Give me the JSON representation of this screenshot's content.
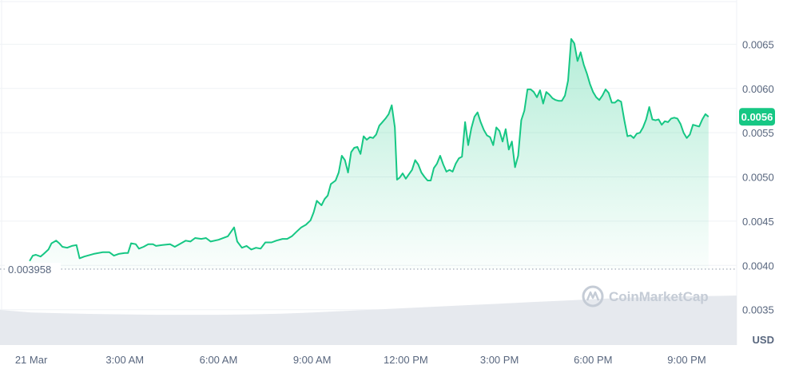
{
  "chart_data": {
    "type": "area",
    "title": "",
    "xlabel": "",
    "ylabel": "",
    "unit": "USD",
    "ylim": [
      0.0031,
      0.007
    ],
    "y_ticks": [
      "0.0035",
      "0.0040",
      "0.0045",
      "0.0050",
      "0.0055",
      "0.0060",
      "0.0065"
    ],
    "x_ticks": [
      "21 Mar",
      "3:00 AM",
      "6:00 AM",
      "9:00 AM",
      "12:00 PM",
      "3:00 PM",
      "6:00 PM",
      "9:00 PM"
    ],
    "x_tick_hours": [
      0,
      3,
      6,
      9,
      12,
      15,
      18,
      21
    ],
    "x_range_hours": [
      -1.0,
      22.6
    ],
    "reference": {
      "value": 0.003958,
      "label": "0.003958"
    },
    "current": {
      "value": 0.0056,
      "label": "0.0056"
    },
    "grid": true,
    "colors": {
      "line": "#16c784",
      "fill": "#16c784",
      "volume": "#e6e9ee",
      "grid": "#eff2f5"
    },
    "watermark": "CoinMarketCap",
    "series": [
      {
        "points": [
          [
            -0.05,
            0.00405
          ],
          [
            0.05,
            0.00411
          ],
          [
            0.15,
            0.00412
          ],
          [
            0.3,
            0.0041
          ],
          [
            0.4,
            0.00413
          ],
          [
            0.55,
            0.00418
          ],
          [
            0.65,
            0.00425
          ],
          [
            0.8,
            0.00428
          ],
          [
            0.9,
            0.00425
          ],
          [
            1.0,
            0.00421
          ],
          [
            1.15,
            0.0042
          ],
          [
            1.3,
            0.00422
          ],
          [
            1.45,
            0.00423
          ],
          [
            1.55,
            0.00408
          ],
          [
            1.7,
            0.0041
          ],
          [
            2.0,
            0.00413
          ],
          [
            2.3,
            0.00415
          ],
          [
            2.5,
            0.00415
          ],
          [
            2.65,
            0.00411
          ],
          [
            2.8,
            0.00413
          ],
          [
            3.0,
            0.00414
          ],
          [
            3.1,
            0.00414
          ],
          [
            3.2,
            0.00425
          ],
          [
            3.35,
            0.00424
          ],
          [
            3.45,
            0.00419
          ],
          [
            3.6,
            0.00421
          ],
          [
            3.75,
            0.00424
          ],
          [
            3.9,
            0.00424
          ],
          [
            4.0,
            0.00422
          ],
          [
            4.2,
            0.00423
          ],
          [
            4.45,
            0.00424
          ],
          [
            4.6,
            0.00421
          ],
          [
            4.75,
            0.00424
          ],
          [
            4.95,
            0.00428
          ],
          [
            5.1,
            0.00427
          ],
          [
            5.25,
            0.00431
          ],
          [
            5.45,
            0.0043
          ],
          [
            5.6,
            0.00431
          ],
          [
            5.75,
            0.00427
          ],
          [
            6.0,
            0.00429
          ],
          [
            6.3,
            0.00433
          ],
          [
            6.5,
            0.00443
          ],
          [
            6.6,
            0.00427
          ],
          [
            6.75,
            0.0042
          ],
          [
            6.9,
            0.00422
          ],
          [
            7.05,
            0.00418
          ],
          [
            7.2,
            0.0042
          ],
          [
            7.35,
            0.00419
          ],
          [
            7.5,
            0.00426
          ],
          [
            7.7,
            0.00426
          ],
          [
            7.85,
            0.00428
          ],
          [
            8.05,
            0.0043
          ],
          [
            8.2,
            0.0043
          ],
          [
            8.35,
            0.00433
          ],
          [
            8.5,
            0.00438
          ],
          [
            8.65,
            0.00443
          ],
          [
            8.8,
            0.00446
          ],
          [
            8.95,
            0.00451
          ],
          [
            9.05,
            0.0046
          ],
          [
            9.15,
            0.00473
          ],
          [
            9.3,
            0.00468
          ],
          [
            9.4,
            0.00475
          ],
          [
            9.5,
            0.00479
          ],
          [
            9.6,
            0.00492
          ],
          [
            9.75,
            0.00496
          ],
          [
            9.85,
            0.00505
          ],
          [
            9.95,
            0.00524
          ],
          [
            10.05,
            0.00519
          ],
          [
            10.15,
            0.00505
          ],
          [
            10.25,
            0.00528
          ],
          [
            10.35,
            0.00533
          ],
          [
            10.45,
            0.00534
          ],
          [
            10.55,
            0.00526
          ],
          [
            10.65,
            0.00546
          ],
          [
            10.75,
            0.00542
          ],
          [
            10.85,
            0.00545
          ],
          [
            10.95,
            0.00544
          ],
          [
            11.05,
            0.00548
          ],
          [
            11.15,
            0.00558
          ],
          [
            11.25,
            0.00562
          ],
          [
            11.35,
            0.00566
          ],
          [
            11.45,
            0.00571
          ],
          [
            11.55,
            0.00581
          ],
          [
            11.65,
            0.00556
          ],
          [
            11.72,
            0.00497
          ],
          [
            11.8,
            0.00499
          ],
          [
            11.9,
            0.00504
          ],
          [
            12.0,
            0.00498
          ],
          [
            12.1,
            0.00503
          ],
          [
            12.2,
            0.00508
          ],
          [
            12.3,
            0.00519
          ],
          [
            12.4,
            0.00514
          ],
          [
            12.5,
            0.00505
          ],
          [
            12.6,
            0.005
          ],
          [
            12.7,
            0.00496
          ],
          [
            12.8,
            0.00496
          ],
          [
            12.9,
            0.0051
          ],
          [
            13.0,
            0.00515
          ],
          [
            13.1,
            0.00524
          ],
          [
            13.2,
            0.00514
          ],
          [
            13.3,
            0.00506
          ],
          [
            13.4,
            0.00508
          ],
          [
            13.5,
            0.00506
          ],
          [
            13.6,
            0.00515
          ],
          [
            13.7,
            0.00521
          ],
          [
            13.8,
            0.00523
          ],
          [
            13.9,
            0.00562
          ],
          [
            14.0,
            0.00536
          ],
          [
            14.1,
            0.00555
          ],
          [
            14.2,
            0.00568
          ],
          [
            14.3,
            0.00573
          ],
          [
            14.4,
            0.00562
          ],
          [
            14.5,
            0.00553
          ],
          [
            14.6,
            0.00547
          ],
          [
            14.7,
            0.00545
          ],
          [
            14.8,
            0.00536
          ],
          [
            14.9,
            0.00556
          ],
          [
            15.0,
            0.00552
          ],
          [
            15.1,
            0.0054
          ],
          [
            15.2,
            0.00554
          ],
          [
            15.3,
            0.00531
          ],
          [
            15.4,
            0.0054
          ],
          [
            15.5,
            0.00511
          ],
          [
            15.6,
            0.00524
          ],
          [
            15.7,
            0.00564
          ],
          [
            15.8,
            0.00575
          ],
          [
            15.9,
            0.00599
          ],
          [
            16.0,
            0.00599
          ],
          [
            16.1,
            0.00596
          ],
          [
            16.2,
            0.0059
          ],
          [
            16.3,
            0.00598
          ],
          [
            16.4,
            0.00583
          ],
          [
            16.5,
            0.00596
          ],
          [
            16.6,
            0.00593
          ],
          [
            16.7,
            0.00589
          ],
          [
            16.8,
            0.00587
          ],
          [
            16.9,
            0.00586
          ],
          [
            17.0,
            0.00586
          ],
          [
            17.1,
            0.00592
          ],
          [
            17.2,
            0.00609
          ],
          [
            17.3,
            0.00656
          ],
          [
            17.4,
            0.00651
          ],
          [
            17.5,
            0.00631
          ],
          [
            17.6,
            0.00641
          ],
          [
            17.7,
            0.00627
          ],
          [
            17.8,
            0.00617
          ],
          [
            17.9,
            0.00605
          ],
          [
            18.0,
            0.00596
          ],
          [
            18.1,
            0.0059
          ],
          [
            18.2,
            0.00587
          ],
          [
            18.3,
            0.00592
          ],
          [
            18.4,
            0.00599
          ],
          [
            18.5,
            0.00595
          ],
          [
            18.6,
            0.00584
          ],
          [
            18.7,
            0.00584
          ],
          [
            18.8,
            0.00587
          ],
          [
            18.9,
            0.00585
          ],
          [
            19.0,
            0.00564
          ],
          [
            19.1,
            0.00546
          ],
          [
            19.2,
            0.00547
          ],
          [
            19.3,
            0.00544
          ],
          [
            19.4,
            0.00549
          ],
          [
            19.5,
            0.0055
          ],
          [
            19.6,
            0.00556
          ],
          [
            19.7,
            0.00565
          ],
          [
            19.8,
            0.00579
          ],
          [
            19.9,
            0.00565
          ],
          [
            20.0,
            0.00564
          ],
          [
            20.1,
            0.00565
          ],
          [
            20.2,
            0.00559
          ],
          [
            20.3,
            0.00563
          ],
          [
            20.4,
            0.00562
          ],
          [
            20.5,
            0.00566
          ],
          [
            20.6,
            0.00567
          ],
          [
            20.7,
            0.00566
          ],
          [
            20.8,
            0.0056
          ],
          [
            20.9,
            0.0055
          ],
          [
            21.0,
            0.00544
          ],
          [
            21.1,
            0.00548
          ],
          [
            21.2,
            0.00559
          ],
          [
            21.3,
            0.00558
          ],
          [
            21.4,
            0.00557
          ],
          [
            21.5,
            0.00565
          ],
          [
            21.6,
            0.00571
          ],
          [
            21.7,
            0.00568
          ]
        ]
      }
    ],
    "volume_profile": [
      [
        -1.0,
        0.95
      ],
      [
        0.0,
        0.88
      ],
      [
        1.0,
        0.86
      ],
      [
        2.0,
        0.84
      ],
      [
        3.0,
        0.83
      ],
      [
        4.0,
        0.82
      ],
      [
        5.0,
        0.82
      ],
      [
        6.0,
        0.82
      ],
      [
        7.0,
        0.83
      ],
      [
        8.0,
        0.85
      ],
      [
        9.0,
        0.88
      ],
      [
        10.0,
        0.92
      ],
      [
        11.0,
        0.96
      ],
      [
        12.0,
        1.0
      ],
      [
        13.0,
        1.04
      ],
      [
        14.0,
        1.08
      ],
      [
        15.0,
        1.12
      ],
      [
        16.0,
        1.16
      ],
      [
        17.0,
        1.2
      ],
      [
        18.0,
        1.24
      ],
      [
        19.0,
        1.28
      ],
      [
        20.0,
        1.3
      ],
      [
        21.0,
        1.32
      ],
      [
        22.0,
        1.33
      ],
      [
        22.6,
        1.34
      ]
    ]
  }
}
